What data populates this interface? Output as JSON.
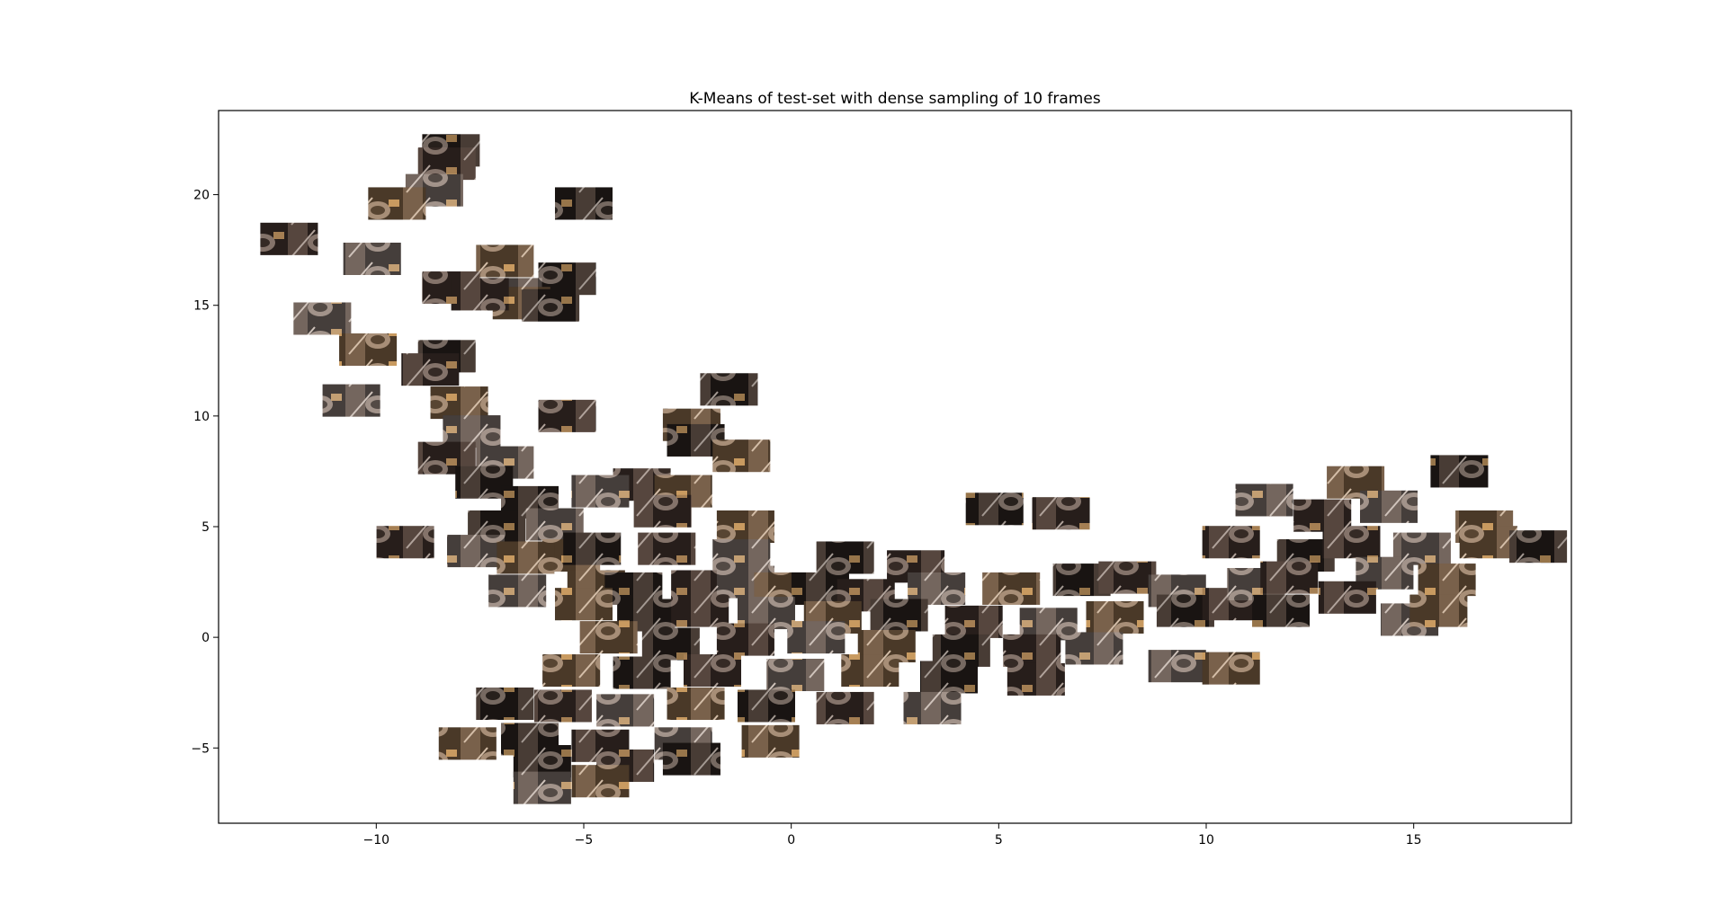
{
  "chart_data": {
    "type": "scatter",
    "title": "K-Means of test-set with dense sampling of 10 frames",
    "xlabel": "",
    "ylabel": "",
    "xlim": [
      -13.8,
      18.8
    ],
    "ylim": [
      -8.4,
      23.8
    ],
    "xticks": [
      -10,
      -5,
      0,
      5,
      10,
      15
    ],
    "yticks": [
      -5,
      0,
      5,
      10,
      15,
      20
    ],
    "xtick_labels": [
      "−10",
      "−5",
      "0",
      "5",
      "10",
      "15"
    ],
    "ytick_labels": [
      "−5",
      "0",
      "5",
      "10",
      "15",
      "20"
    ],
    "grid": false,
    "legend": "none",
    "marker": "image-thumbnail",
    "colors": {
      "frame": "#000000",
      "background": "#ffffff",
      "thumb_dark": "#1a1412",
      "thumb_mid": "#4a3a32",
      "thumb_light": "#b8aca4",
      "thumb_warm": "#c89a60"
    },
    "points": [
      {
        "x": -8.2,
        "y": 22.0
      },
      {
        "x": -8.3,
        "y": 21.4
      },
      {
        "x": -8.6,
        "y": 20.2
      },
      {
        "x": -9.5,
        "y": 19.6
      },
      {
        "x": -5.0,
        "y": 19.6
      },
      {
        "x": -12.1,
        "y": 18.0
      },
      {
        "x": -10.1,
        "y": 17.1
      },
      {
        "x": -6.9,
        "y": 17.0
      },
      {
        "x": -5.4,
        "y": 16.2
      },
      {
        "x": -8.2,
        "y": 15.8
      },
      {
        "x": -6.7,
        "y": 15.5
      },
      {
        "x": -6.5,
        "y": 15.1
      },
      {
        "x": -5.8,
        "y": 15.0
      },
      {
        "x": -7.5,
        "y": 15.5
      },
      {
        "x": -11.3,
        "y": 14.4
      },
      {
        "x": -10.2,
        "y": 13.0
      },
      {
        "x": -8.3,
        "y": 12.7
      },
      {
        "x": -8.7,
        "y": 12.1
      },
      {
        "x": -10.6,
        "y": 10.7
      },
      {
        "x": -8.0,
        "y": 10.6
      },
      {
        "x": -1.5,
        "y": 11.2
      },
      {
        "x": -5.4,
        "y": 10.0
      },
      {
        "x": -7.7,
        "y": 9.3
      },
      {
        "x": -2.4,
        "y": 9.6
      },
      {
        "x": -2.3,
        "y": 8.9
      },
      {
        "x": -8.3,
        "y": 8.1
      },
      {
        "x": -6.9,
        "y": 7.9
      },
      {
        "x": -1.2,
        "y": 8.2
      },
      {
        "x": -7.4,
        "y": 7.0
      },
      {
        "x": -3.6,
        "y": 6.9
      },
      {
        "x": -4.6,
        "y": 6.6
      },
      {
        "x": -2.6,
        "y": 6.6
      },
      {
        "x": -6.3,
        "y": 6.1
      },
      {
        "x": -3.1,
        "y": 5.7
      },
      {
        "x": -5.7,
        "y": 5.1
      },
      {
        "x": -1.1,
        "y": 5.0
      },
      {
        "x": -7.1,
        "y": 5.0
      },
      {
        "x": -9.3,
        "y": 4.3
      },
      {
        "x": -7.6,
        "y": 3.9
      },
      {
        "x": -5.3,
        "y": 3.7
      },
      {
        "x": -4.8,
        "y": 4.0
      },
      {
        "x": -3.0,
        "y": 4.0
      },
      {
        "x": -1.2,
        "y": 3.7
      },
      {
        "x": -6.4,
        "y": 3.6
      },
      {
        "x": 1.3,
        "y": 3.6
      },
      {
        "x": 3.0,
        "y": 3.2
      },
      {
        "x": -6.6,
        "y": 2.1
      },
      {
        "x": -4.7,
        "y": 2.3
      },
      {
        "x": -3.8,
        "y": 2.2
      },
      {
        "x": -2.2,
        "y": 2.3
      },
      {
        "x": -1.1,
        "y": 2.5
      },
      {
        "x": -0.2,
        "y": 2.2
      },
      {
        "x": 0.7,
        "y": 2.2
      },
      {
        "x": 1.8,
        "y": 1.9
      },
      {
        "x": 3.5,
        "y": 2.2
      },
      {
        "x": 5.3,
        "y": 2.2
      },
      {
        "x": 7.0,
        "y": 2.6
      },
      {
        "x": 8.1,
        "y": 2.7
      },
      {
        "x": 9.3,
        "y": 2.1
      },
      {
        "x": -5.0,
        "y": 1.5
      },
      {
        "x": -3.5,
        "y": 1.0
      },
      {
        "x": -2.2,
        "y": 1.2
      },
      {
        "x": -0.6,
        "y": 1.1
      },
      {
        "x": 1.0,
        "y": 0.9
      },
      {
        "x": 2.6,
        "y": 1.0
      },
      {
        "x": 4.4,
        "y": 0.7
      },
      {
        "x": 6.2,
        "y": 0.6
      },
      {
        "x": 7.8,
        "y": 0.9
      },
      {
        "x": 9.5,
        "y": 1.2
      },
      {
        "x": 10.6,
        "y": 1.5
      },
      {
        "x": 11.2,
        "y": 2.4
      },
      {
        "x": -4.4,
        "y": 0.0
      },
      {
        "x": -2.9,
        "y": -0.3
      },
      {
        "x": -1.1,
        "y": -0.1
      },
      {
        "x": 0.6,
        "y": 0.0
      },
      {
        "x": 2.3,
        "y": -0.4
      },
      {
        "x": 4.1,
        "y": -0.6
      },
      {
        "x": 5.8,
        "y": -0.6
      },
      {
        "x": 7.3,
        "y": -0.5
      },
      {
        "x": -5.3,
        "y": -1.5
      },
      {
        "x": -3.6,
        "y": -1.6
      },
      {
        "x": -1.9,
        "y": -1.5
      },
      {
        "x": 0.1,
        "y": -1.7
      },
      {
        "x": 1.9,
        "y": -1.5
      },
      {
        "x": 3.8,
        "y": -1.8
      },
      {
        "x": 5.9,
        "y": -1.9
      },
      {
        "x": 9.3,
        "y": -1.3
      },
      {
        "x": 10.6,
        "y": -1.4
      },
      {
        "x": -6.9,
        "y": -3.0
      },
      {
        "x": -5.5,
        "y": -3.1
      },
      {
        "x": -4.0,
        "y": -3.3
      },
      {
        "x": -2.3,
        "y": -3.0
      },
      {
        "x": -0.6,
        "y": -3.1
      },
      {
        "x": 1.3,
        "y": -3.2
      },
      {
        "x": 3.4,
        "y": -3.2
      },
      {
        "x": -7.8,
        "y": -4.8
      },
      {
        "x": -6.3,
        "y": -4.6
      },
      {
        "x": -4.6,
        "y": -4.9
      },
      {
        "x": -2.6,
        "y": -4.8
      },
      {
        "x": -0.5,
        "y": -4.7
      },
      {
        "x": -6.0,
        "y": -5.6
      },
      {
        "x": -4.0,
        "y": -5.8
      },
      {
        "x": -6.0,
        "y": -6.8
      },
      {
        "x": -4.6,
        "y": -6.5
      },
      {
        "x": -2.4,
        "y": -5.5
      },
      {
        "x": 10.6,
        "y": 4.3
      },
      {
        "x": 11.4,
        "y": 6.2
      },
      {
        "x": 13.6,
        "y": 7.0
      },
      {
        "x": 16.1,
        "y": 7.5
      },
      {
        "x": 12.8,
        "y": 5.5
      },
      {
        "x": 14.4,
        "y": 5.9
      },
      {
        "x": 16.7,
        "y": 5.0
      },
      {
        "x": 12.4,
        "y": 3.7
      },
      {
        "x": 13.5,
        "y": 4.3
      },
      {
        "x": 15.2,
        "y": 4.0
      },
      {
        "x": 16.8,
        "y": 4.3
      },
      {
        "x": 18.0,
        "y": 4.1
      },
      {
        "x": 12.0,
        "y": 2.7
      },
      {
        "x": 14.3,
        "y": 2.9
      },
      {
        "x": 15.8,
        "y": 2.6
      },
      {
        "x": 11.8,
        "y": 1.2
      },
      {
        "x": 13.4,
        "y": 1.8
      },
      {
        "x": 14.9,
        "y": 0.8
      },
      {
        "x": 15.6,
        "y": 1.2
      },
      {
        "x": 4.9,
        "y": 5.8
      },
      {
        "x": 6.5,
        "y": 5.6
      }
    ]
  }
}
